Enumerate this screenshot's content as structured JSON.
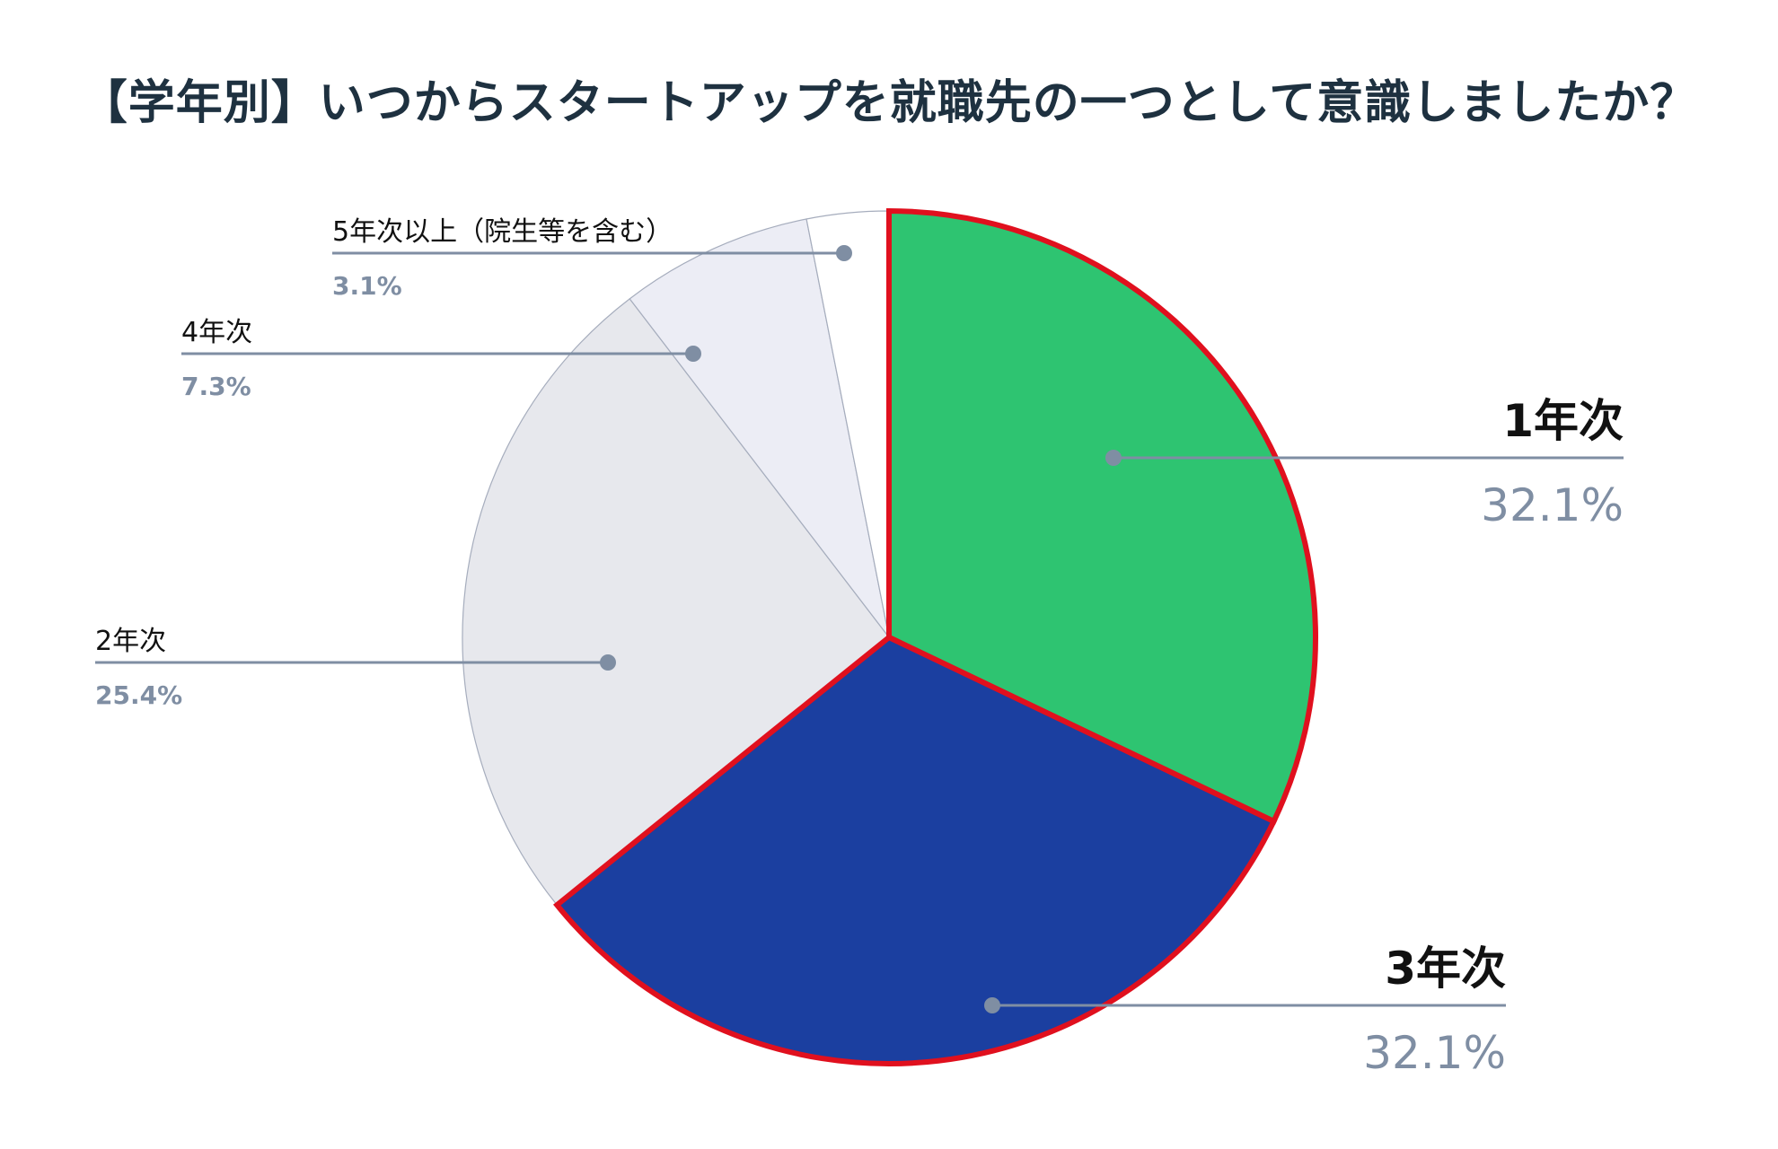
{
  "chart_data": {
    "type": "pie",
    "title": "【学年別】いつからスタートアップを就職先の一つとして意識しましたか？",
    "slices": [
      {
        "label": "1年次",
        "value": 32.1,
        "value_label": "32.1%",
        "color": "#2ec471",
        "emphasis": true
      },
      {
        "label": "3年次",
        "value": 32.1,
        "value_label": "32.1%",
        "color": "#1b3fa0",
        "emphasis": true
      },
      {
        "label": "2年次",
        "value": 25.4,
        "value_label": "25.4%",
        "color": "#e7e8ed",
        "emphasis": false
      },
      {
        "label": "4年次",
        "value": 7.3,
        "value_label": "7.3%",
        "color": "#ecedf5",
        "emphasis": false
      },
      {
        "label": "5年次以上（院生等を含む）",
        "value": 3.1,
        "value_label": "3.1%",
        "color": "#ffffff",
        "emphasis": false
      }
    ],
    "start_angle": "12 o'clock",
    "direction": "clockwise",
    "highlight_color": "#e0101e",
    "leader_color": "#7f8ea3",
    "value_label_color": "#7f8ea3"
  }
}
